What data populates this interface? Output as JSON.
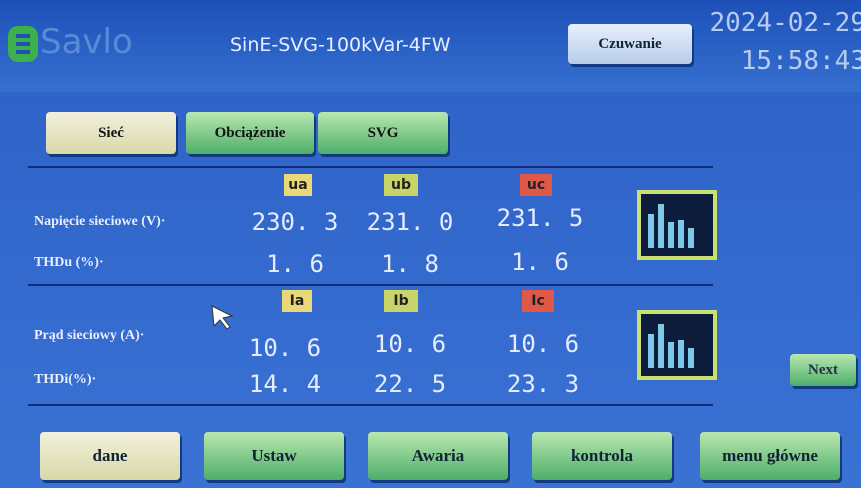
{
  "header": {
    "logo": "Savlo",
    "model": "SinE-SVG-100kVar-4FW",
    "status_button": "Czuwanie",
    "date": "2024-02-29",
    "time": "15:58:43"
  },
  "tabs": [
    "Sieć",
    "Obciążenie",
    "SVG"
  ],
  "voltage": {
    "columns": [
      "ua",
      "ub",
      "uc"
    ],
    "rows": [
      {
        "label": "Napięcie sieciowe (V)·",
        "values": [
          "230. 3",
          "231. 0",
          "231. 5"
        ]
      },
      {
        "label": "THDu (%)·",
        "values": [
          "1. 6",
          "1. 8",
          "1. 6"
        ]
      }
    ]
  },
  "current": {
    "columns": [
      "Ia",
      "Ib",
      "Ic"
    ],
    "rows": [
      {
        "label": "Prąd sieciowy (A)·",
        "values": [
          "10. 6",
          "10. 6",
          "10. 6"
        ]
      },
      {
        "label": "THDi(%)·",
        "values": [
          "14. 4",
          "22. 5",
          "23. 3"
        ]
      }
    ]
  },
  "next_button": "Next",
  "bottom_buttons": [
    "dane",
    "Ustaw",
    "Awaria",
    "kontrola",
    "menu główne"
  ]
}
